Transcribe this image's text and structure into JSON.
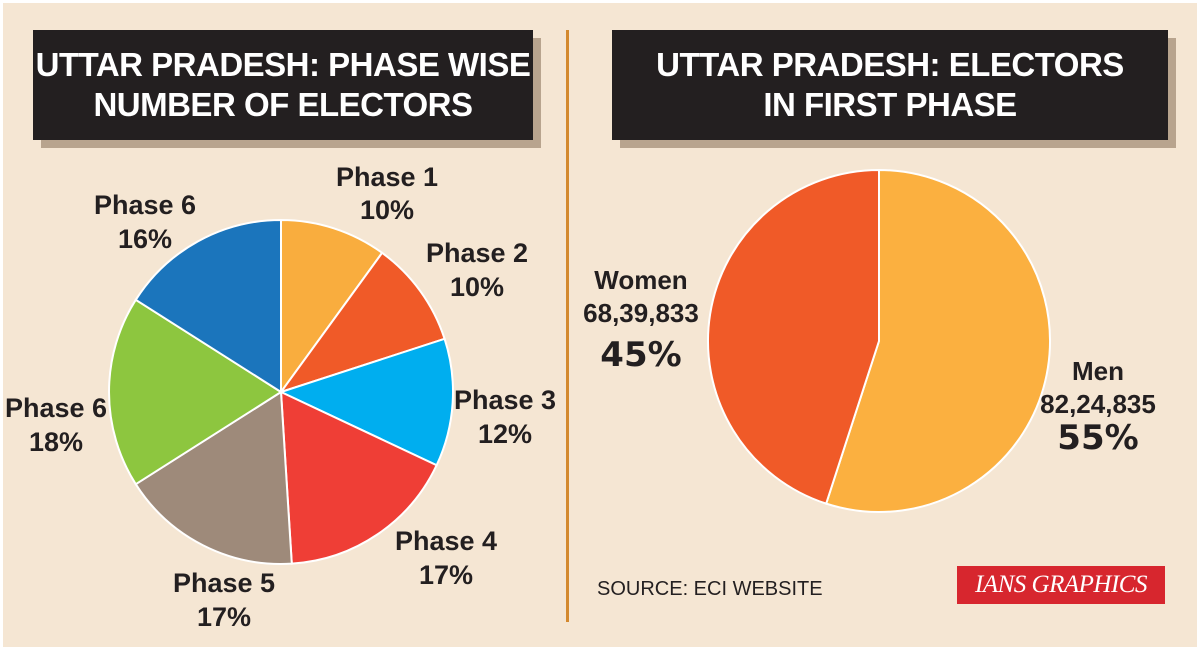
{
  "chart_data": [
    {
      "type": "pie",
      "title": "UTTAR PRADESH: PHASE WISE\nNUMBER OF ELECTORS",
      "slices": [
        {
          "name": "Phase 1",
          "value": 10,
          "label": "10%",
          "color": "#f9ad3e"
        },
        {
          "name": "Phase 2",
          "value": 10,
          "label": "10%",
          "color": "#f05a28"
        },
        {
          "name": "Phase 3",
          "value": 12,
          "label": "12%",
          "color": "#00aeef"
        },
        {
          "name": "Phase 4",
          "value": 17,
          "label": "17%",
          "color": "#ef3e36"
        },
        {
          "name": "Phase 5",
          "value": 17,
          "label": "17%",
          "color": "#9e8a7a"
        },
        {
          "name": "Phase 6",
          "value": 18,
          "label": "18%",
          "color": "#8dc63f"
        },
        {
          "name": "Phase 6",
          "value": 16,
          "label": "16%",
          "color": "#1b75bc"
        }
      ]
    },
    {
      "type": "pie",
      "title": "UTTAR PRADESH: ELECTORS\nIN FIRST PHASE",
      "slices": [
        {
          "name": "Men",
          "count": "82,24,835",
          "value": 55,
          "label": "55%",
          "color": "#fbb040"
        },
        {
          "name": "Women",
          "count": "68,39,833",
          "value": 45,
          "label": "45%",
          "color": "#f05a28"
        }
      ]
    }
  ],
  "source": "SOURCE: ECI WEBSITE",
  "brand": "IANS GRAPHICS"
}
